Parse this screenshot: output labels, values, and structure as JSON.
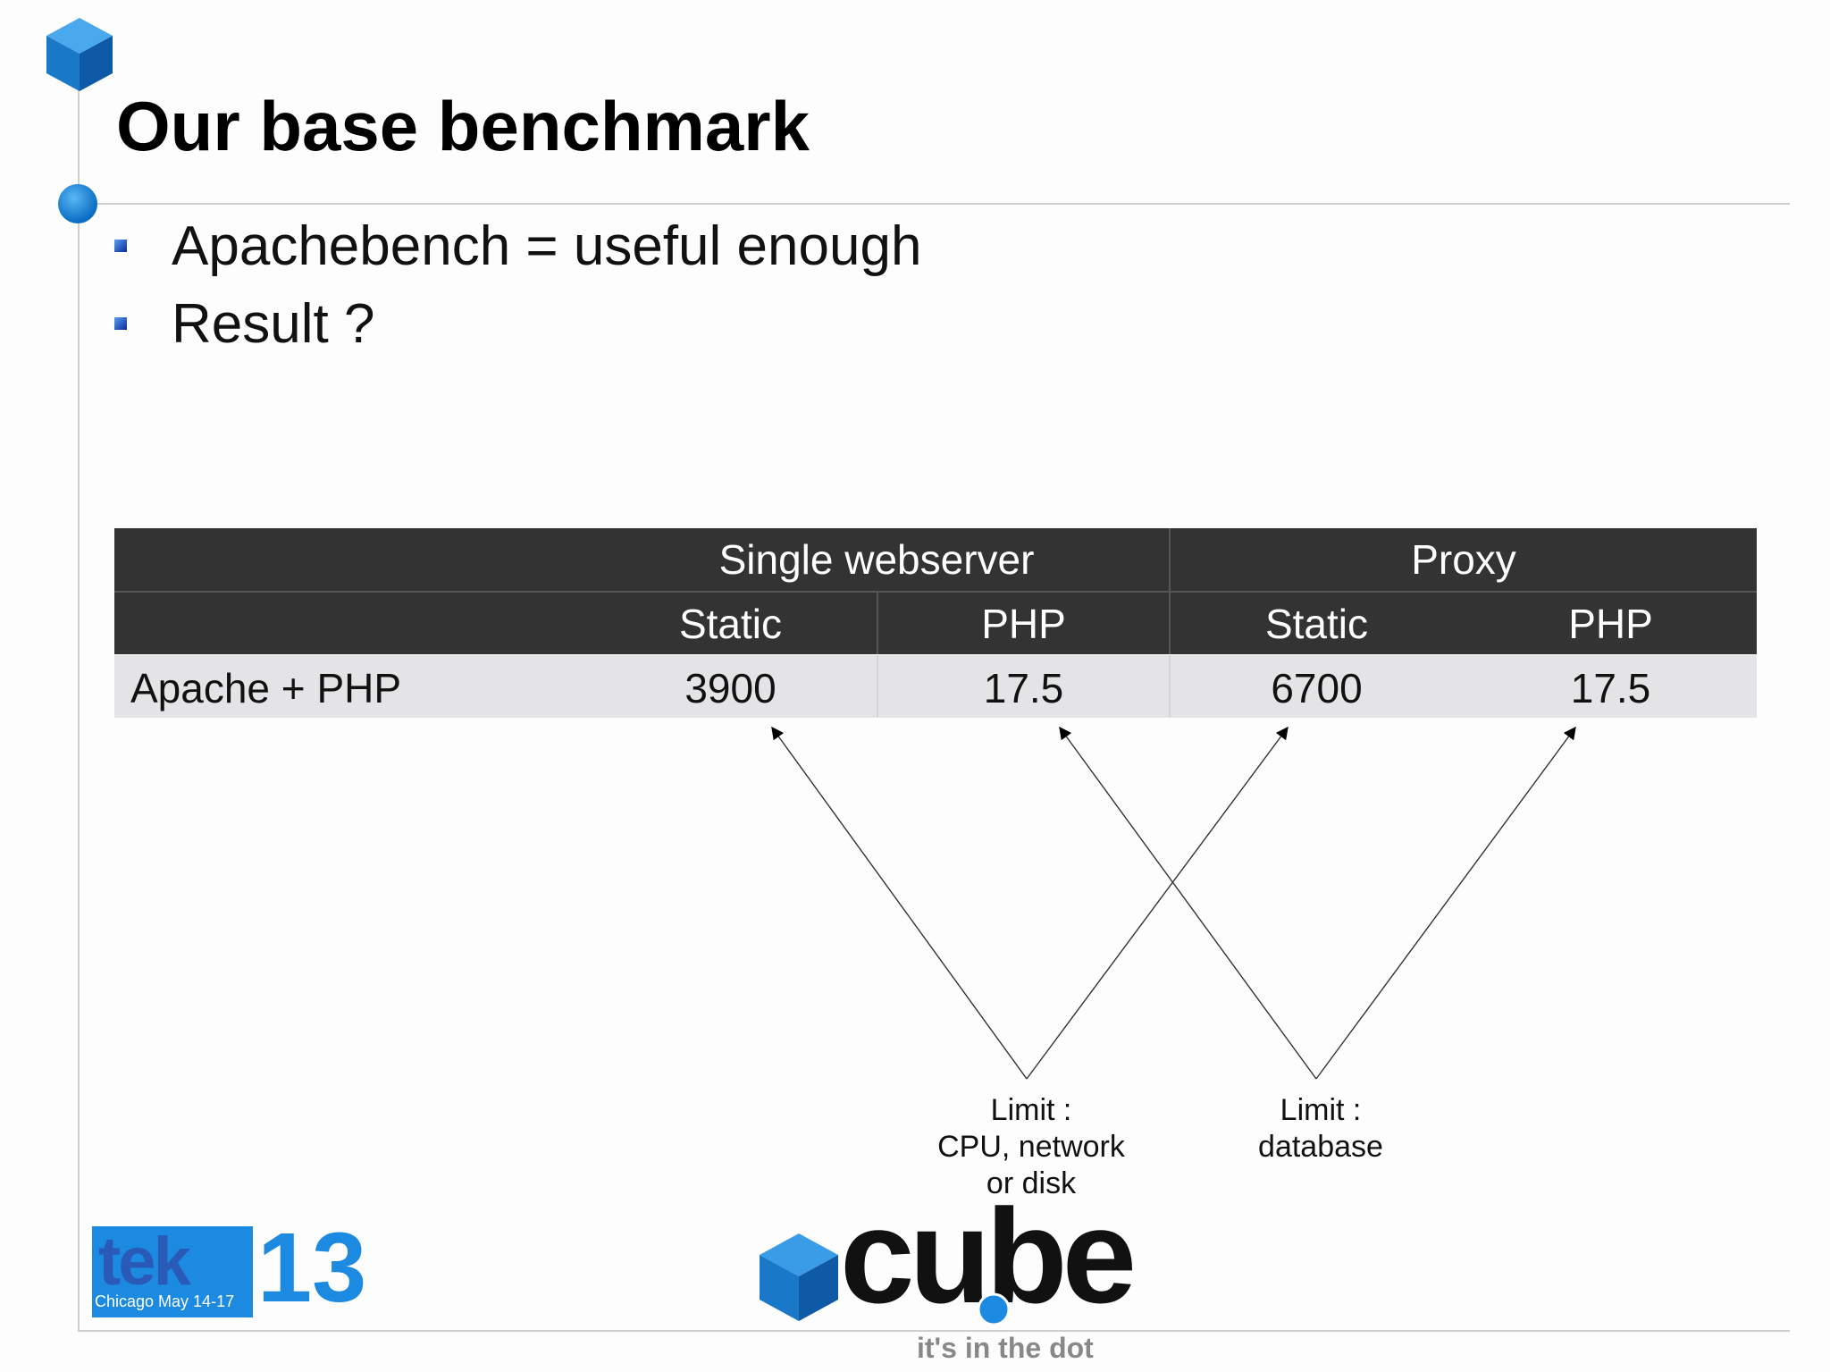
{
  "slide": {
    "title": "Our base benchmark",
    "bullets": [
      "Apachebench = useful enough",
      "Result ?"
    ]
  },
  "table": {
    "group_headers": [
      "Single webserver",
      "Proxy"
    ],
    "sub_headers": [
      "Static",
      "PHP",
      "Static",
      "PHP"
    ],
    "row": {
      "label": "Apache + PHP",
      "values": [
        "3900",
        "17.5",
        "6700",
        "17.5"
      ]
    }
  },
  "annotations": {
    "limit_cpu": [
      "Limit :",
      "CPU, network",
      "or disk"
    ],
    "limit_db": [
      "Limit :",
      "database"
    ]
  },
  "logos": {
    "tek_label": "Chicago May 14-17",
    "tek_word": "tek",
    "tek_number": "13",
    "cube_word": "cube",
    "cube_tagline": "it's in the dot"
  },
  "colors": {
    "accent_blue": "#1c8ae0",
    "table_header": "#333333",
    "table_row": "#e4e4e6"
  }
}
